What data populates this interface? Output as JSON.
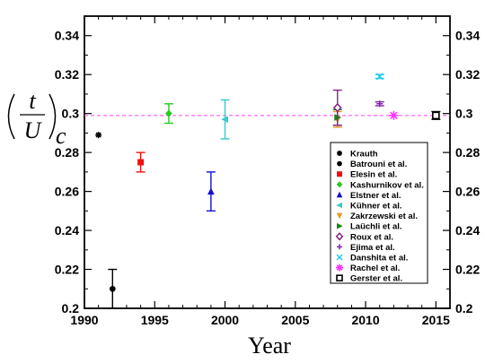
{
  "chart_data": {
    "type": "scatter",
    "xlabel": "Year",
    "ylabel_parts": {
      "numerator": "t",
      "denominator": "U",
      "subscript": "c"
    },
    "xlim": [
      1990,
      2016
    ],
    "ylim": [
      0.2,
      0.35
    ],
    "xticks": [
      1990,
      1995,
      2000,
      2005,
      2010,
      2015
    ],
    "xtick_labels": [
      "1990",
      "1995",
      "2000",
      "2005",
      "2010",
      "2015"
    ],
    "yticks": [
      0.2,
      0.22,
      0.24,
      0.26,
      0.28,
      0.3,
      0.32,
      0.34
    ],
    "ytick_labels": [
      "0.2",
      "0.22",
      "0.24",
      "0.26",
      "0.28",
      "0.3",
      "0.32",
      "0.34"
    ],
    "reference_line": {
      "y": 0.299,
      "color": "#ff44ff",
      "style": "dashed"
    },
    "legend_position": "lower-right",
    "series": [
      {
        "name": "Krauth",
        "marker": "asterisk",
        "color": "#000000",
        "points": [
          {
            "x": 1991,
            "y": 0.289
          }
        ]
      },
      {
        "name": "Batrouni et al.",
        "marker": "circle",
        "color": "#000000",
        "points": [
          {
            "x": 1992,
            "y": 0.21,
            "err": 0.01
          }
        ]
      },
      {
        "name": "Elesin et al.",
        "marker": "square",
        "color": "#ee1111",
        "points": [
          {
            "x": 1994,
            "y": 0.275,
            "err": 0.005
          }
        ]
      },
      {
        "name": "Kashurnikov et al.",
        "marker": "diamond",
        "color": "#22cc22",
        "points": [
          {
            "x": 1996,
            "y": 0.3,
            "err": 0.005
          }
        ]
      },
      {
        "name": "Elstner et al.",
        "marker": "triangle-up",
        "color": "#1111cc",
        "points": [
          {
            "x": 1999,
            "y": 0.26,
            "err": 0.01
          }
        ]
      },
      {
        "name": "Kühner et al.",
        "marker": "triangle-left",
        "color": "#33cccc",
        "points": [
          {
            "x": 2000,
            "y": 0.297,
            "err": 0.01
          }
        ]
      },
      {
        "name": "Zakrzewski et al.",
        "marker": "triangle-down",
        "color": "#ee9922",
        "points": [
          {
            "x": 2008,
            "y": 0.297,
            "err": 0.004
          }
        ]
      },
      {
        "name": "Laüchli et al.",
        "marker": "triangle-right",
        "color": "#118811",
        "points": [
          {
            "x": 2008,
            "y": 0.298,
            "err": 0.004
          }
        ]
      },
      {
        "name": "Roux et al.",
        "marker": "open-diamond",
        "color": "#882288",
        "points": [
          {
            "x": 2008,
            "y": 0.303,
            "err": 0.009
          }
        ]
      },
      {
        "name": "Ejima et al.",
        "marker": "plus",
        "color": "#8822aa",
        "points": [
          {
            "x": 2011,
            "y": 0.305,
            "err": 0.001
          }
        ]
      },
      {
        "name": "Danshita et al.",
        "marker": "cross",
        "color": "#22ccee",
        "points": [
          {
            "x": 2011,
            "y": 0.319,
            "err": 0.001
          }
        ]
      },
      {
        "name": "Rachel et al.",
        "marker": "asterisk",
        "color": "#ff33ff",
        "points": [
          {
            "x": 2012,
            "y": 0.299
          }
        ]
      },
      {
        "name": "Gerster et al.",
        "marker": "open-square",
        "color": "#000000",
        "points": [
          {
            "x": 2015,
            "y": 0.299,
            "err": 0.002
          }
        ]
      }
    ]
  }
}
